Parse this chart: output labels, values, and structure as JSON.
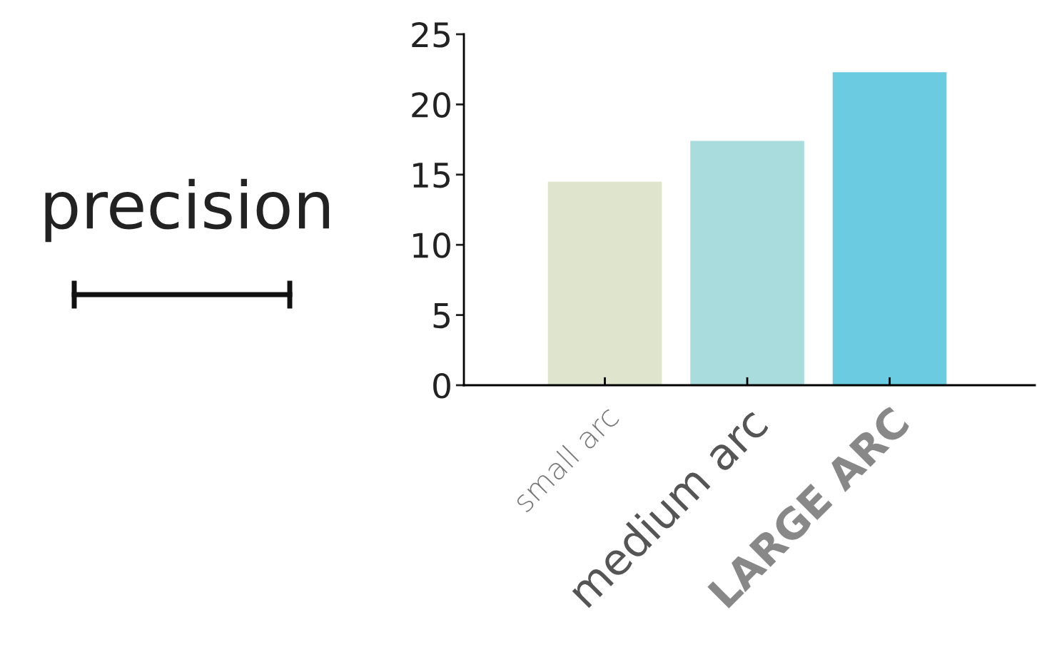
{
  "chart_data": {
    "type": "bar",
    "ylabel": "precision",
    "categories": [
      "small arc",
      "medium arc",
      "LARGE ARC"
    ],
    "values": [
      14.5,
      17.4,
      22.3
    ],
    "colors": [
      "#dfe4cc",
      "#a9dcdc",
      "#6bcbe1"
    ],
    "ylim": [
      0,
      25
    ],
    "yticks": [
      0,
      5,
      10,
      15,
      20,
      25
    ],
    "grid": false,
    "legend": false
  }
}
